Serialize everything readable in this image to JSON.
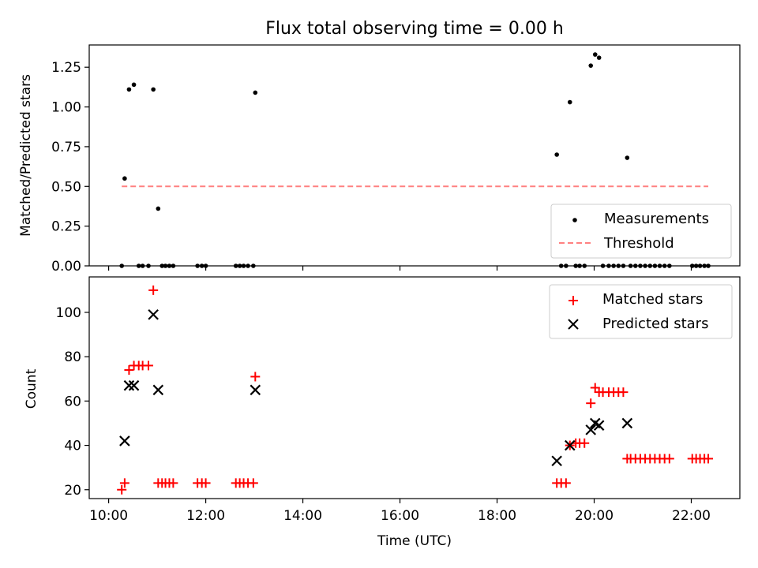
{
  "chart_data": [
    {
      "type": "scatter",
      "title": "Flux total observing time = 0.00 h",
      "xlabel": "",
      "ylabel": "Matched/Predicted stars",
      "xlim": [
        9.6,
        23.0
      ],
      "ylim": [
        0.0,
        1.39
      ],
      "yticks": [
        0.0,
        0.25,
        0.5,
        0.75,
        1.0,
        1.25
      ],
      "ytick_labels": [
        "0.00",
        "0.25",
        "0.50",
        "0.75",
        "1.00",
        "1.25"
      ],
      "legend_position": "lower-right",
      "series": [
        {
          "name": "Measurements",
          "marker": "dot",
          "color": "#000000",
          "points": [
            [
              10.27,
              0.0
            ],
            [
              10.33,
              0.55
            ],
            [
              10.42,
              1.11
            ],
            [
              10.52,
              1.14
            ],
            [
              10.62,
              0.0
            ],
            [
              10.7,
              0.0
            ],
            [
              10.82,
              0.0
            ],
            [
              10.92,
              1.11
            ],
            [
              11.02,
              0.36
            ],
            [
              11.1,
              0.0
            ],
            [
              11.17,
              0.0
            ],
            [
              11.25,
              0.0
            ],
            [
              11.33,
              0.0
            ],
            [
              11.83,
              0.0
            ],
            [
              11.92,
              0.0
            ],
            [
              12.0,
              0.0
            ],
            [
              12.62,
              0.0
            ],
            [
              12.7,
              0.0
            ],
            [
              12.78,
              0.0
            ],
            [
              12.87,
              0.0
            ],
            [
              12.98,
              0.0
            ],
            [
              13.02,
              1.09
            ],
            [
              19.23,
              0.7
            ],
            [
              19.32,
              0.0
            ],
            [
              19.42,
              0.0
            ],
            [
              19.5,
              1.03
            ],
            [
              19.62,
              0.0
            ],
            [
              19.7,
              0.0
            ],
            [
              19.8,
              0.0
            ],
            [
              19.93,
              1.26
            ],
            [
              20.02,
              1.33
            ],
            [
              20.1,
              1.31
            ],
            [
              20.18,
              0.0
            ],
            [
              20.3,
              0.0
            ],
            [
              20.4,
              0.0
            ],
            [
              20.5,
              0.0
            ],
            [
              20.6,
              0.0
            ],
            [
              20.68,
              0.68
            ],
            [
              20.75,
              0.0
            ],
            [
              20.85,
              0.0
            ],
            [
              20.95,
              0.0
            ],
            [
              21.05,
              0.0
            ],
            [
              21.15,
              0.0
            ],
            [
              21.25,
              0.0
            ],
            [
              21.35,
              0.0
            ],
            [
              21.45,
              0.0
            ],
            [
              21.55,
              0.0
            ],
            [
              22.02,
              0.0
            ],
            [
              22.1,
              0.0
            ],
            [
              22.18,
              0.0
            ],
            [
              22.27,
              0.0
            ],
            [
              22.35,
              0.0
            ]
          ]
        },
        {
          "name": "Threshold",
          "style": "dashed",
          "color": "#ff8080",
          "points": [
            [
              10.27,
              0.5
            ],
            [
              22.35,
              0.5
            ]
          ]
        }
      ]
    },
    {
      "type": "scatter",
      "title": "",
      "xlabel": "Time (UTC)",
      "ylabel": "Count",
      "xlim": [
        9.6,
        23.0
      ],
      "ylim": [
        16,
        116
      ],
      "xticks": [
        10,
        12,
        14,
        16,
        18,
        20,
        22
      ],
      "xtick_labels": [
        "10:00",
        "12:00",
        "14:00",
        "16:00",
        "18:00",
        "20:00",
        "22:00"
      ],
      "yticks": [
        20,
        40,
        60,
        80,
        100
      ],
      "ytick_labels": [
        "20",
        "40",
        "60",
        "80",
        "100"
      ],
      "legend_position": "upper-right",
      "series": [
        {
          "name": "Matched stars",
          "marker": "plus",
          "color": "#ff0000",
          "points": [
            [
              10.27,
              20
            ],
            [
              10.33,
              23
            ],
            [
              10.42,
              74
            ],
            [
              10.52,
              76
            ],
            [
              10.62,
              76
            ],
            [
              10.7,
              76
            ],
            [
              10.82,
              76
            ],
            [
              10.92,
              110
            ],
            [
              11.02,
              23
            ],
            [
              11.1,
              23
            ],
            [
              11.17,
              23
            ],
            [
              11.25,
              23
            ],
            [
              11.33,
              23
            ],
            [
              11.83,
              23
            ],
            [
              11.92,
              23
            ],
            [
              12.0,
              23
            ],
            [
              12.62,
              23
            ],
            [
              12.7,
              23
            ],
            [
              12.78,
              23
            ],
            [
              12.87,
              23
            ],
            [
              12.98,
              23
            ],
            [
              13.02,
              71
            ],
            [
              19.23,
              23
            ],
            [
              19.32,
              23
            ],
            [
              19.42,
              23
            ],
            [
              19.5,
              40
            ],
            [
              19.62,
              41
            ],
            [
              19.7,
              41
            ],
            [
              19.8,
              41
            ],
            [
              19.93,
              59
            ],
            [
              20.02,
              66
            ],
            [
              20.1,
              64
            ],
            [
              20.18,
              64
            ],
            [
              20.3,
              64
            ],
            [
              20.4,
              64
            ],
            [
              20.5,
              64
            ],
            [
              20.6,
              64
            ],
            [
              20.68,
              34
            ],
            [
              20.75,
              34
            ],
            [
              20.85,
              34
            ],
            [
              20.95,
              34
            ],
            [
              21.05,
              34
            ],
            [
              21.15,
              34
            ],
            [
              21.25,
              34
            ],
            [
              21.35,
              34
            ],
            [
              21.45,
              34
            ],
            [
              21.55,
              34
            ],
            [
              22.02,
              34
            ],
            [
              22.1,
              34
            ],
            [
              22.18,
              34
            ],
            [
              22.27,
              34
            ],
            [
              22.35,
              34
            ]
          ]
        },
        {
          "name": "Predicted stars",
          "marker": "x",
          "color": "#000000",
          "points": [
            [
              10.33,
              42
            ],
            [
              10.42,
              67
            ],
            [
              10.52,
              67
            ],
            [
              10.92,
              99
            ],
            [
              11.02,
              65
            ],
            [
              13.02,
              65
            ],
            [
              19.23,
              33
            ],
            [
              19.5,
              40
            ],
            [
              19.93,
              47
            ],
            [
              20.02,
              50
            ],
            [
              20.1,
              49
            ],
            [
              20.68,
              50
            ]
          ]
        }
      ]
    }
  ]
}
